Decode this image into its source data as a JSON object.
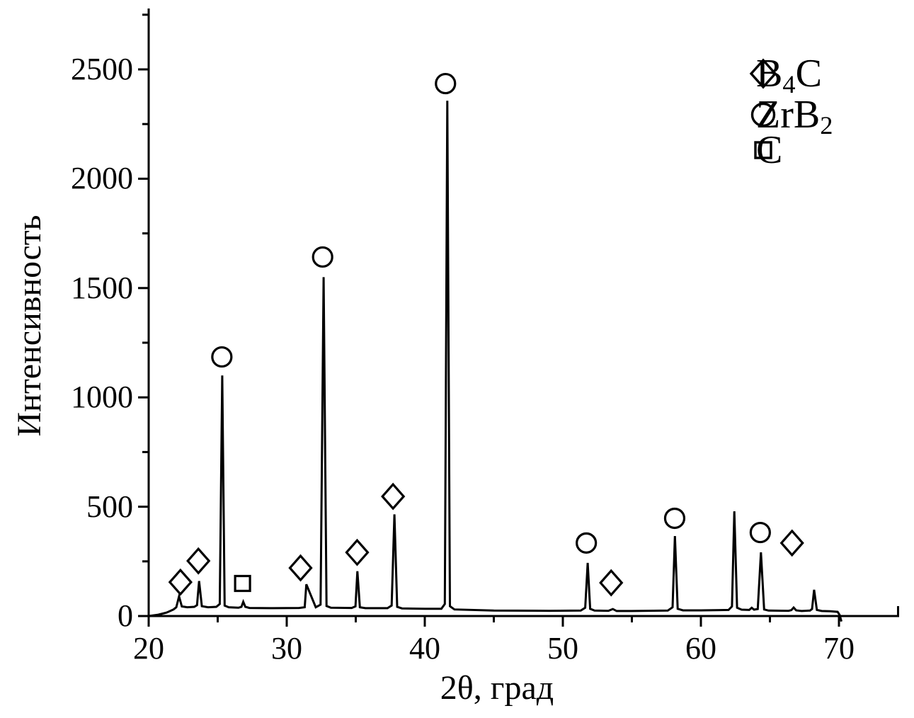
{
  "figure": {
    "background_color": "#ffffff",
    "foreground_color": "#000000"
  },
  "chart_data": {
    "type": "line",
    "subtype": "xrd-diffraction-pattern",
    "title": "",
    "xlabel": "2θ, град",
    "ylabel": "Интенсивность",
    "xlim": [
      20,
      74.4
    ],
    "ylim": [
      0,
      2780
    ],
    "x_ticks": [
      20,
      30,
      40,
      50,
      60,
      70
    ],
    "x_minor_ticks": [
      25,
      35,
      45,
      55,
      65
    ],
    "y_ticks": [
      0,
      500,
      1000,
      1500,
      2000,
      2500
    ],
    "y_minor_ticks": [
      250,
      750,
      1250,
      1750,
      2250,
      2750
    ],
    "grid": false,
    "legend": {
      "position": "top-right",
      "entries": [
        {
          "symbol": "diamond",
          "label": "B4C"
        },
        {
          "symbol": "circle",
          "label": "ZrB2"
        },
        {
          "symbol": "square",
          "label": "C"
        }
      ]
    },
    "peaks": [
      {
        "two_theta": 22.2,
        "intensity": 90,
        "phase": "B4C"
      },
      {
        "two_theta": 23.7,
        "intensity": 160,
        "phase": "B4C"
      },
      {
        "two_theta": 25.3,
        "intensity": 1100,
        "phase": "ZrB2"
      },
      {
        "two_theta": 26.8,
        "intensity": 65,
        "phase": "C"
      },
      {
        "two_theta": 31.5,
        "intensity": 145,
        "phase": "B4C"
      },
      {
        "two_theta": 32.7,
        "intensity": 1550,
        "phase": "ZrB2"
      },
      {
        "two_theta": 35.1,
        "intensity": 205,
        "phase": "B4C"
      },
      {
        "two_theta": 37.8,
        "intensity": 465,
        "phase": "B4C"
      },
      {
        "two_theta": 41.6,
        "intensity": 2357,
        "phase": "ZrB2"
      },
      {
        "two_theta": 51.8,
        "intensity": 243,
        "phase": "ZrB2"
      },
      {
        "two_theta": 53.6,
        "intensity": 32,
        "phase": "B4C"
      },
      {
        "two_theta": 58.1,
        "intensity": 366,
        "phase": "ZrB2"
      },
      {
        "two_theta": 62.4,
        "intensity": 479,
        "phase": null
      },
      {
        "two_theta": 64.3,
        "intensity": 291,
        "phase": "ZrB2"
      },
      {
        "two_theta": 66.7,
        "intensity": 39,
        "phase": "B4C"
      },
      {
        "two_theta": 68.2,
        "intensity": 120,
        "phase": null
      }
    ],
    "markers": [
      {
        "x": 22.3,
        "y": 155,
        "symbol": "diamond"
      },
      {
        "x": 23.6,
        "y": 252,
        "symbol": "diamond"
      },
      {
        "x": 25.3,
        "y": 1185,
        "symbol": "circle"
      },
      {
        "x": 26.8,
        "y": 149,
        "symbol": "square"
      },
      {
        "x": 31.0,
        "y": 220,
        "symbol": "diamond"
      },
      {
        "x": 32.6,
        "y": 1642,
        "symbol": "circle"
      },
      {
        "x": 35.1,
        "y": 291,
        "symbol": "diamond"
      },
      {
        "x": 37.7,
        "y": 547,
        "symbol": "diamond"
      },
      {
        "x": 41.5,
        "y": 2435,
        "symbol": "circle"
      },
      {
        "x": 51.7,
        "y": 334,
        "symbol": "circle"
      },
      {
        "x": 53.5,
        "y": 152,
        "symbol": "diamond"
      },
      {
        "x": 58.1,
        "y": 447,
        "symbol": "circle"
      },
      {
        "x": 64.3,
        "y": 382,
        "symbol": "circle"
      },
      {
        "x": 66.6,
        "y": 334,
        "symbol": "diamond"
      }
    ],
    "profile": [
      [
        20.0,
        0
      ],
      [
        20.7,
        6
      ],
      [
        21.3,
        16
      ],
      [
        21.8,
        30
      ],
      [
        22.0,
        40
      ],
      [
        22.2,
        90
      ],
      [
        22.4,
        44
      ],
      [
        22.8,
        40
      ],
      [
        23.3,
        42
      ],
      [
        23.5,
        50
      ],
      [
        23.65,
        160
      ],
      [
        23.85,
        45
      ],
      [
        24.3,
        40
      ],
      [
        24.9,
        42
      ],
      [
        25.15,
        55
      ],
      [
        25.33,
        1100
      ],
      [
        25.5,
        48
      ],
      [
        25.8,
        40
      ],
      [
        26.5,
        38
      ],
      [
        26.72,
        42
      ],
      [
        26.85,
        65
      ],
      [
        27.0,
        42
      ],
      [
        27.3,
        37
      ],
      [
        29.0,
        36
      ],
      [
        30.9,
        37
      ],
      [
        31.3,
        40
      ],
      [
        31.42,
        145
      ],
      [
        32.1,
        40
      ],
      [
        32.45,
        52
      ],
      [
        32.67,
        1550
      ],
      [
        32.88,
        46
      ],
      [
        33.2,
        38
      ],
      [
        34.7,
        37
      ],
      [
        34.98,
        44
      ],
      [
        35.12,
        205
      ],
      [
        35.3,
        40
      ],
      [
        35.7,
        36
      ],
      [
        37.3,
        36
      ],
      [
        37.6,
        48
      ],
      [
        37.8,
        465
      ],
      [
        38.0,
        42
      ],
      [
        38.35,
        35
      ],
      [
        40.0,
        33
      ],
      [
        41.2,
        33
      ],
      [
        41.45,
        55
      ],
      [
        41.63,
        2357
      ],
      [
        41.82,
        45
      ],
      [
        42.15,
        30
      ],
      [
        45.0,
        25
      ],
      [
        49.0,
        24
      ],
      [
        51.3,
        25
      ],
      [
        51.62,
        38
      ],
      [
        51.8,
        243
      ],
      [
        51.98,
        33
      ],
      [
        52.3,
        25
      ],
      [
        53.3,
        24
      ],
      [
        53.62,
        32
      ],
      [
        53.9,
        23
      ],
      [
        55.0,
        23
      ],
      [
        57.6,
        25
      ],
      [
        57.95,
        40
      ],
      [
        58.12,
        366
      ],
      [
        58.32,
        33
      ],
      [
        58.7,
        26
      ],
      [
        60.0,
        26
      ],
      [
        62.0,
        28
      ],
      [
        62.25,
        44
      ],
      [
        62.42,
        479
      ],
      [
        62.62,
        38
      ],
      [
        62.95,
        29
      ],
      [
        63.5,
        28
      ],
      [
        63.68,
        38
      ],
      [
        63.85,
        29
      ],
      [
        64.12,
        32
      ],
      [
        64.35,
        291
      ],
      [
        64.58,
        30
      ],
      [
        64.9,
        25
      ],
      [
        66.35,
        24
      ],
      [
        66.55,
        27
      ],
      [
        66.72,
        39
      ],
      [
        66.9,
        26
      ],
      [
        67.3,
        23
      ],
      [
        67.9,
        25
      ],
      [
        68.05,
        32
      ],
      [
        68.2,
        120
      ],
      [
        68.4,
        28
      ],
      [
        68.75,
        23
      ],
      [
        69.4,
        22
      ],
      [
        69.9,
        19
      ],
      [
        70.05,
        5
      ],
      [
        70.18,
        -25
      ]
    ]
  }
}
